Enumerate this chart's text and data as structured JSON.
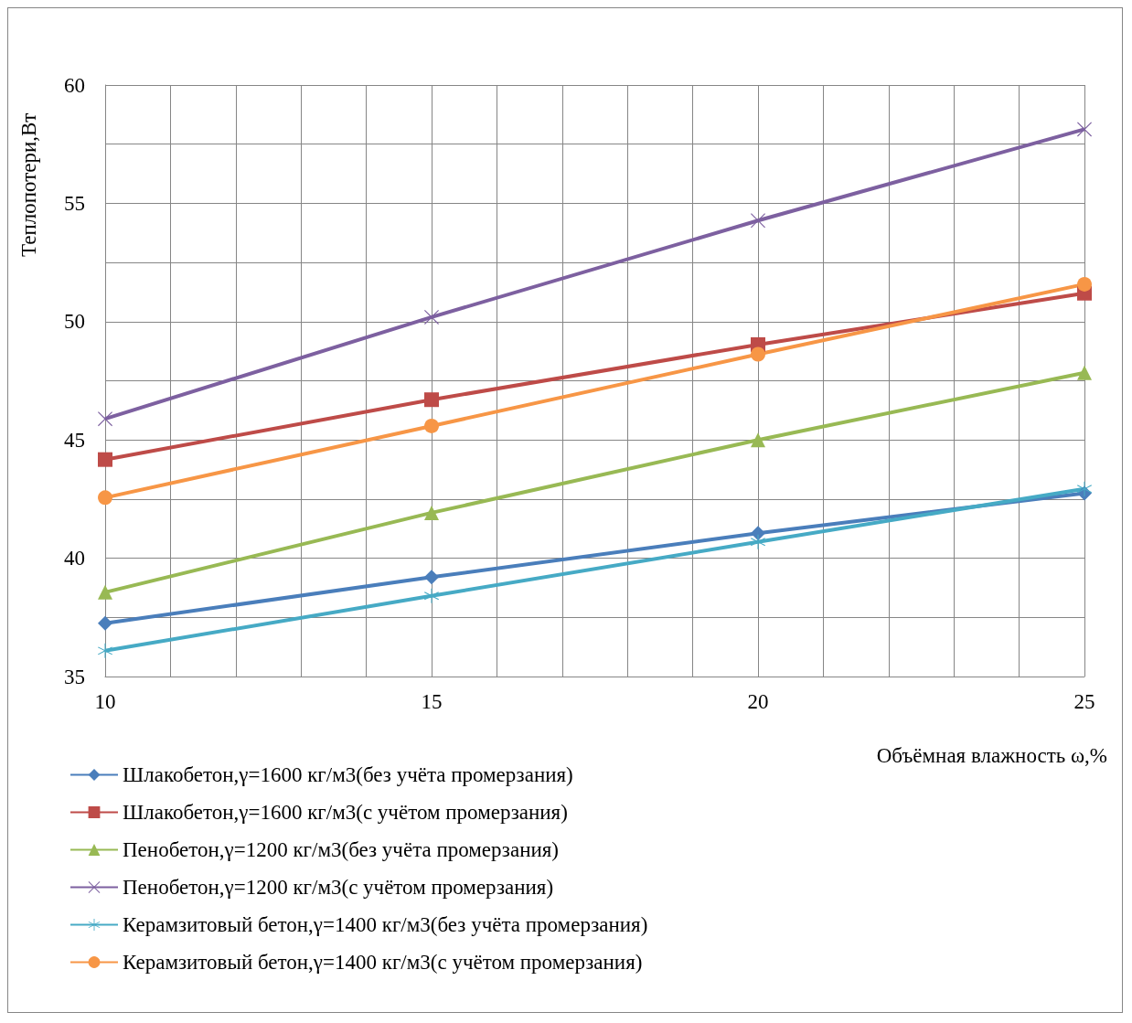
{
  "chart_data": {
    "type": "line",
    "xlabel": "Объёмная влажность ω,%",
    "ylabel": "Теплопотери,Вт",
    "x": [
      10,
      15,
      20,
      25
    ],
    "xlim": [
      10,
      25
    ],
    "xticks": [
      10,
      {
        "value": 11,
        "label": null
      },
      {
        "value": 12,
        "label": null
      },
      {
        "value": 13,
        "label": null
      },
      {
        "value": 14,
        "label": null
      },
      15,
      {
        "value": 16,
        "label": null
      },
      {
        "value": 17,
        "label": null
      },
      {
        "value": 18,
        "label": null
      },
      {
        "value": 19,
        "label": null
      },
      20,
      {
        "value": 21,
        "label": null
      },
      {
        "value": 22,
        "label": null
      },
      {
        "value": 23,
        "label": null
      },
      {
        "value": 24,
        "label": null
      },
      25
    ],
    "ylim": [
      35,
      60
    ],
    "yticks": [
      35,
      {
        "value": 37.5,
        "label": null
      },
      40,
      {
        "value": 42.5,
        "label": null
      },
      45,
      {
        "value": 47.5,
        "label": null
      },
      50,
      {
        "value": 52.5,
        "label": null
      },
      55,
      {
        "value": 57.5,
        "label": null
      },
      60
    ],
    "grid": true,
    "legend": "bottom",
    "line_style": "solid",
    "series": [
      {
        "name": "Шлакобетон,γ=1600 кг/м3(без учёта промерзания)",
        "color": "#4a7ebb",
        "marker": "diamond",
        "values": [
          37.25,
          39.2,
          41.06,
          42.75
        ]
      },
      {
        "name": "Шлакобетон,γ=1600 кг/м3(с учётом промерзания)",
        "color": "#be4b48",
        "marker": "square",
        "values": [
          44.17,
          46.7,
          49.03,
          51.2
        ]
      },
      {
        "name": "Пенобетон,γ=1200 кг/м3(без учёта промерзания)",
        "color": "#98b954",
        "marker": "triangle",
        "values": [
          38.56,
          41.92,
          45.0,
          47.84
        ]
      },
      {
        "name": "Пенобетон,γ=1200 кг/м3(с учётом промерзания)",
        "color": "#7d60a0",
        "marker": "cross",
        "values": [
          45.89,
          50.19,
          54.27,
          58.13
        ]
      },
      {
        "name": "Керамзитовый бетон,γ=1400 кг/м3(без учёта промерзания)",
        "color": "#46aac5",
        "marker": "star",
        "values": [
          36.09,
          38.41,
          40.69,
          42.93
        ]
      },
      {
        "name": "Керамзитовый бетон,γ=1400 кг/м3(с учётом промерзания)",
        "color": "#f79646",
        "marker": "circle",
        "values": [
          42.56,
          45.59,
          48.62,
          51.58
        ]
      }
    ]
  }
}
